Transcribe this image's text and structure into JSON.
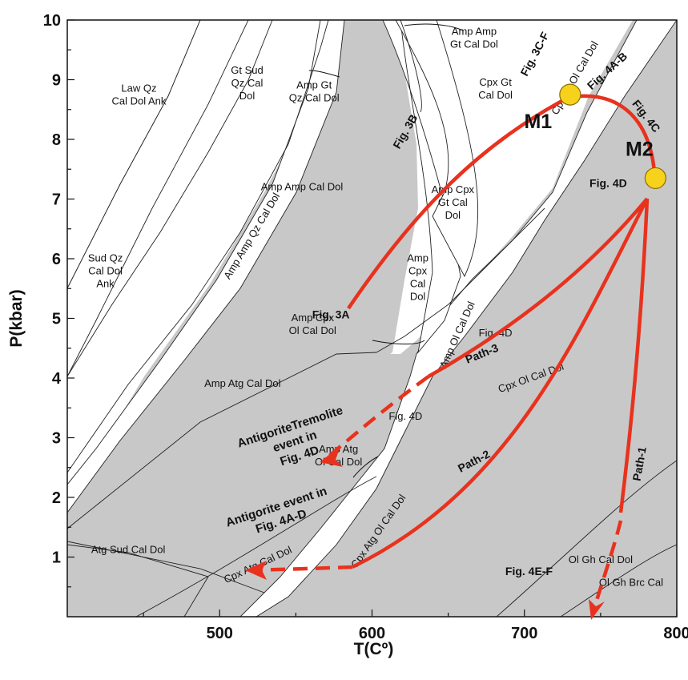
{
  "chart_data": {
    "type": "phase-diagram",
    "xlabel": "T(Cº)",
    "ylabel": "P(kbar)",
    "xlim": [
      400,
      800
    ],
    "ylim": [
      0,
      10
    ],
    "xticks": [
      500,
      600,
      700,
      800
    ],
    "yticks": [
      1,
      2,
      3,
      4,
      5,
      6,
      7,
      8,
      9,
      10
    ],
    "colors": {
      "field_gray": "#c8c8c8",
      "path_red": "#e8321e",
      "point_yellow": "#f6d21c"
    },
    "field_labels": [
      {
        "text": [
          "Law Qz",
          "Cal Dol Ank"
        ],
        "t": 447,
        "p": 8.8
      },
      {
        "text": [
          "Gt Sud",
          "Qz Cal",
          "Dol"
        ],
        "t": 518,
        "p": 9.1
      },
      {
        "text": [
          "Amp Gt",
          "Qz Cal Dol"
        ],
        "t": 562,
        "p": 8.85
      },
      {
        "text": [
          "Amp Amp",
          "Gt Cal Dol"
        ],
        "t": 667,
        "p": 9.75
      },
      {
        "text": [
          "Cpx Gt",
          "Cal Dol"
        ],
        "t": 681,
        "p": 8.9
      },
      {
        "text": [
          "Sud Qz",
          "Cal Dol",
          "Ank"
        ],
        "t": 425,
        "p": 5.95
      },
      {
        "text": [
          "Amp Amp Cal Dol"
        ],
        "t": 554,
        "p": 7.15
      },
      {
        "text": [
          "Amp Cpx",
          "Gt Cal",
          "Dol"
        ],
        "t": 653,
        "p": 7.1
      },
      {
        "text": [
          "Amp",
          "Cpx",
          "Cal",
          "Dol"
        ],
        "t": 630,
        "p": 5.95
      },
      {
        "text": [
          "Amp Cpx",
          "Ol Cal Dol"
        ],
        "t": 561,
        "p": 4.95
      },
      {
        "text": [
          "Amp Atg Cal Dol"
        ],
        "t": 515,
        "p": 3.85
      },
      {
        "text": [
          "Amp Atg",
          "Ol Cal Dol"
        ],
        "t": 578,
        "p": 2.75
      },
      {
        "text": [
          "Atg Sud Cal Dol"
        ],
        "t": 440,
        "p": 1.07
      },
      {
        "text": [
          "Fig. 4D"
        ],
        "t": 681,
        "p": 4.7
      },
      {
        "text": [
          "Fig. 4D"
        ],
        "t": 622,
        "p": 3.3
      },
      {
        "text": [
          "Ol Gh Cal Dol"
        ],
        "t": 750,
        "p": 0.9
      },
      {
        "text": [
          "Ol Gh Brc Cal"
        ],
        "t": 770,
        "p": 0.52
      }
    ],
    "rotated_labels": [
      {
        "text": "Amp Amp Qz Cal Dol",
        "t": 523,
        "p": 6.35,
        "angle": -59
      },
      {
        "text": "Amp Ol Cal Dol",
        "t": 658,
        "p": 4.7,
        "angle": -66
      },
      {
        "text": "Cpx Ol Cal Dol",
        "t": 705,
        "p": 3.95,
        "angle": -20
      },
      {
        "text": "Cpx Atg Ol Cal Dol",
        "t": 606,
        "p": 1.4,
        "angle": -55
      },
      {
        "text": "Cpx Atg Cal Dol",
        "t": 526,
        "p": 0.82,
        "angle": -25
      },
      {
        "text": "Cpx Gt Ol Cal Dol",
        "t": 735,
        "p": 9.0,
        "angle": -60
      }
    ],
    "figure_labels": [
      {
        "text": "Fig. 3C-F",
        "t": 709,
        "p": 9.4,
        "angle": -62
      },
      {
        "text": "Fig. 4A-B",
        "t": 756,
        "p": 9.1,
        "angle": -42
      },
      {
        "text": "Fig. 4C",
        "t": 778,
        "p": 8.35,
        "angle": 52
      },
      {
        "text": "Fig. 3B",
        "t": 624,
        "p": 8.1,
        "angle": -60
      },
      {
        "text": "Fig. 3A",
        "t": 573,
        "p": 5.0,
        "angle": 0
      },
      {
        "text": "Fig. 4D",
        "t": 755,
        "p": 7.2,
        "angle": 0
      },
      {
        "text": "Fig. 4E-F",
        "t": 703,
        "p": 0.7,
        "angle": 0
      }
    ],
    "points": [
      {
        "name": "M1",
        "t": 730,
        "p": 8.75
      },
      {
        "name": "M2",
        "t": 786,
        "p": 7.35
      }
    ],
    "paths": [
      {
        "name": "Path-3",
        "t": 673,
        "p": 4.35,
        "angle": -22
      },
      {
        "name": "Path-2",
        "t": 668,
        "p": 2.55,
        "angle": -28
      },
      {
        "name": "Path-1",
        "t": 778,
        "p": 2.55,
        "angle": -80
      }
    ],
    "events": [
      {
        "lines": [
          "AntigoriteTremolite",
          "event in",
          "Fig. 4D"
        ],
        "t": 547,
        "p": 3.12
      },
      {
        "lines": [
          "Antigorite event in",
          "Fig. 4A-D"
        ],
        "t": 538,
        "p": 1.78
      }
    ]
  }
}
